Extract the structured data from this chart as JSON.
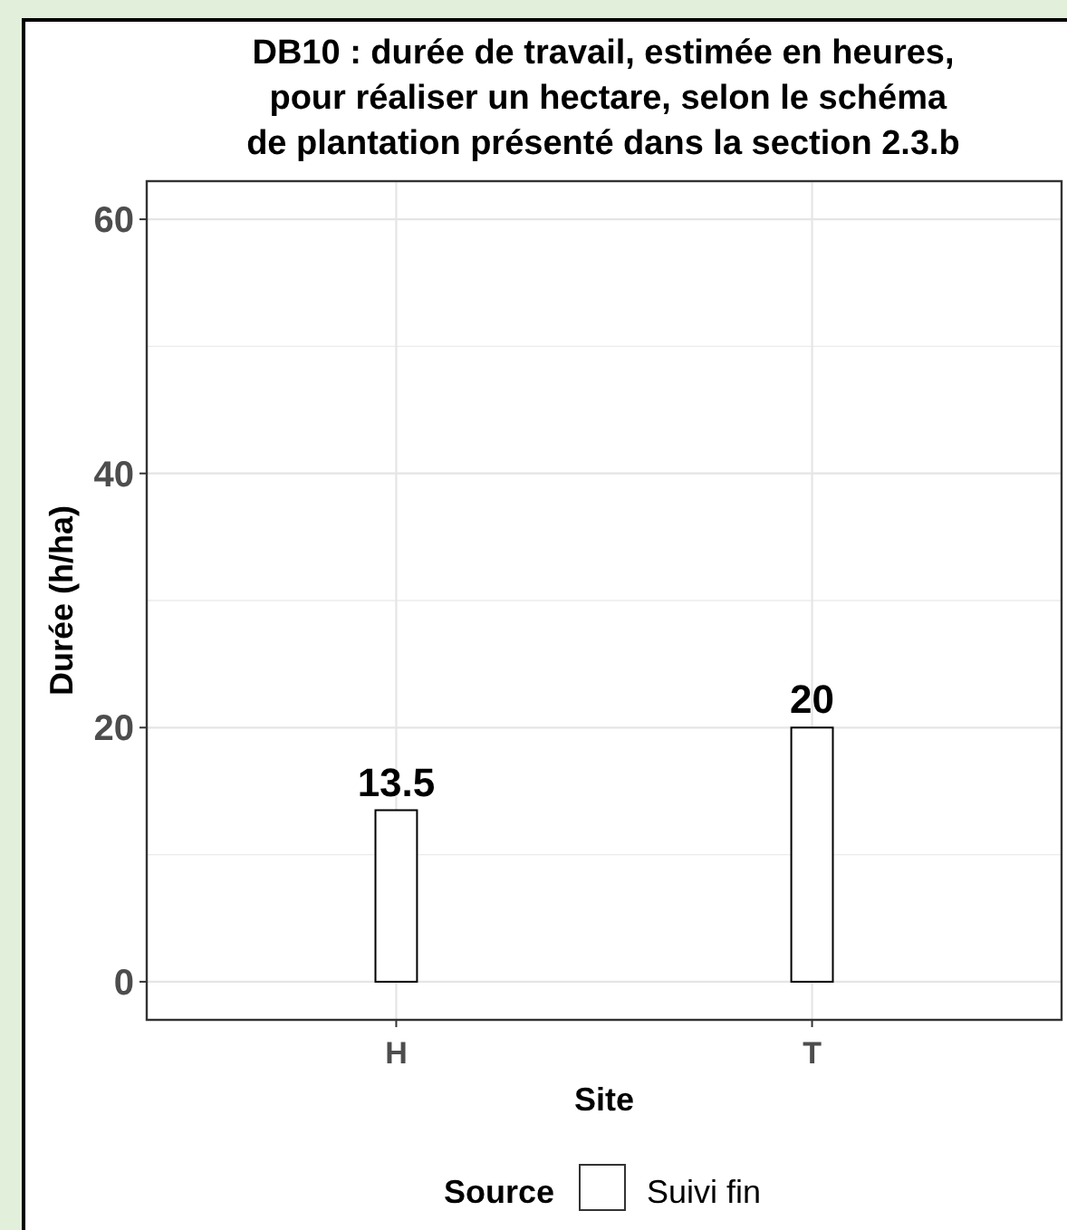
{
  "chart_data": {
    "type": "bar",
    "title": "DB10 : durée de travail, estimée en heures,\n pour réaliser un hectare, selon le schéma\nde plantation présenté dans la section 2.3.b",
    "xlabel": "Site",
    "ylabel": "Durée (h/ha)",
    "legend_title": "Source",
    "categories": [
      "H",
      "T"
    ],
    "series": [
      {
        "name": "Suivi fin",
        "color": "#ffffff",
        "values": [
          13.5,
          20
        ]
      }
    ],
    "ylim": [
      -3,
      63
    ],
    "yticks": [
      0,
      20,
      40,
      60
    ],
    "grid": true,
    "legend": "bottom",
    "data_labels": true
  }
}
